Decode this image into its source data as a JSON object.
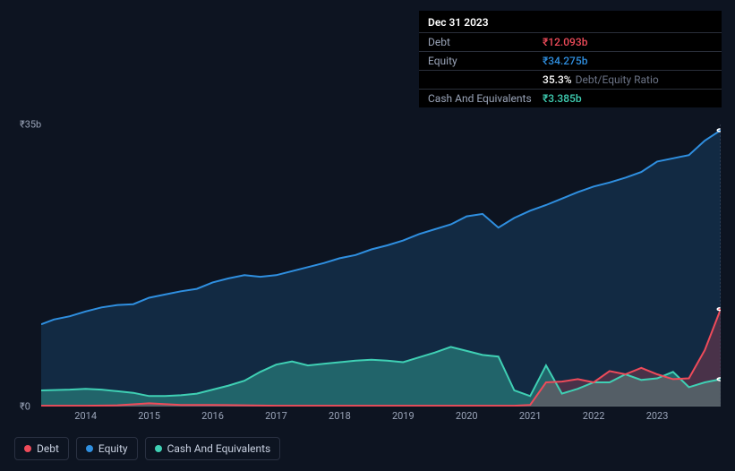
{
  "tooltip": {
    "date": "Dec 31 2023",
    "rows": [
      {
        "label": "Debt",
        "value": "₹12.093b",
        "color": "#ef4b5a"
      },
      {
        "label": "Equity",
        "value": "₹34.275b",
        "color": "#2f8fe0"
      },
      {
        "label": "",
        "value": "35.3%",
        "suffix": "Debt/Equity Ratio",
        "color": "#ffffff"
      },
      {
        "label": "Cash And Equivalents",
        "value": "₹3.385b",
        "color": "#3fd0b4"
      }
    ]
  },
  "chart": {
    "type": "line-area",
    "background_color": "#0d1421",
    "ylim": [
      0,
      35
    ],
    "y_axis": {
      "ticks": [
        {
          "v": 35,
          "label": "₹35b"
        },
        {
          "v": 0,
          "label": "₹0"
        }
      ],
      "label_color": "#9aa4b8",
      "fontsize": 11
    },
    "x_axis": {
      "domain": [
        2013.3,
        2024.0
      ],
      "ticks": [
        2014,
        2015,
        2016,
        2017,
        2018,
        2019,
        2020,
        2021,
        2022,
        2023
      ],
      "label_color": "#9aa4b8",
      "fontsize": 11
    },
    "vline_at": 2024.0,
    "series": [
      {
        "key": "equity",
        "name": "Equity",
        "color": "#2f8fe0",
        "fill_opacity": 0.18,
        "line_width": 2,
        "end_marker": true,
        "data": [
          [
            2013.3,
            10.2
          ],
          [
            2013.5,
            10.8
          ],
          [
            2013.75,
            11.2
          ],
          [
            2014.0,
            11.8
          ],
          [
            2014.25,
            12.3
          ],
          [
            2014.5,
            12.6
          ],
          [
            2014.75,
            12.7
          ],
          [
            2015.0,
            13.5
          ],
          [
            2015.25,
            13.9
          ],
          [
            2015.5,
            14.3
          ],
          [
            2015.75,
            14.6
          ],
          [
            2016.0,
            15.4
          ],
          [
            2016.25,
            15.9
          ],
          [
            2016.5,
            16.3
          ],
          [
            2016.75,
            16.1
          ],
          [
            2017.0,
            16.3
          ],
          [
            2017.25,
            16.8
          ],
          [
            2017.5,
            17.3
          ],
          [
            2017.75,
            17.8
          ],
          [
            2018.0,
            18.4
          ],
          [
            2018.25,
            18.8
          ],
          [
            2018.5,
            19.5
          ],
          [
            2018.75,
            20.0
          ],
          [
            2019.0,
            20.6
          ],
          [
            2019.25,
            21.4
          ],
          [
            2019.5,
            22.0
          ],
          [
            2019.75,
            22.6
          ],
          [
            2020.0,
            23.6
          ],
          [
            2020.25,
            23.9
          ],
          [
            2020.5,
            22.2
          ],
          [
            2020.75,
            23.4
          ],
          [
            2021.0,
            24.3
          ],
          [
            2021.25,
            25.0
          ],
          [
            2021.5,
            25.8
          ],
          [
            2021.75,
            26.6
          ],
          [
            2022.0,
            27.3
          ],
          [
            2022.25,
            27.8
          ],
          [
            2022.5,
            28.4
          ],
          [
            2022.75,
            29.1
          ],
          [
            2023.0,
            30.4
          ],
          [
            2023.25,
            30.8
          ],
          [
            2023.5,
            31.2
          ],
          [
            2023.75,
            33.0
          ],
          [
            2024.0,
            34.28
          ]
        ]
      },
      {
        "key": "cash",
        "name": "Cash And Equivalents",
        "color": "#3fd0b4",
        "fill_opacity": 0.35,
        "line_width": 2,
        "end_marker": true,
        "data": [
          [
            2013.3,
            2.0
          ],
          [
            2013.75,
            2.1
          ],
          [
            2014.0,
            2.2
          ],
          [
            2014.25,
            2.1
          ],
          [
            2014.5,
            1.9
          ],
          [
            2014.75,
            1.7
          ],
          [
            2015.0,
            1.3
          ],
          [
            2015.25,
            1.3
          ],
          [
            2015.5,
            1.4
          ],
          [
            2015.75,
            1.6
          ],
          [
            2016.0,
            2.1
          ],
          [
            2016.25,
            2.6
          ],
          [
            2016.5,
            3.2
          ],
          [
            2016.75,
            4.3
          ],
          [
            2017.0,
            5.2
          ],
          [
            2017.25,
            5.6
          ],
          [
            2017.5,
            5.1
          ],
          [
            2017.75,
            5.3
          ],
          [
            2018.0,
            5.5
          ],
          [
            2018.25,
            5.7
          ],
          [
            2018.5,
            5.8
          ],
          [
            2018.75,
            5.7
          ],
          [
            2019.0,
            5.5
          ],
          [
            2019.25,
            6.1
          ],
          [
            2019.5,
            6.7
          ],
          [
            2019.75,
            7.4
          ],
          [
            2020.0,
            6.9
          ],
          [
            2020.25,
            6.4
          ],
          [
            2020.5,
            6.2
          ],
          [
            2020.75,
            2.0
          ],
          [
            2021.0,
            1.3
          ],
          [
            2021.25,
            5.1
          ],
          [
            2021.5,
            1.6
          ],
          [
            2021.75,
            2.2
          ],
          [
            2022.0,
            3.0
          ],
          [
            2022.25,
            3.0
          ],
          [
            2022.5,
            4.0
          ],
          [
            2022.75,
            3.3
          ],
          [
            2023.0,
            3.5
          ],
          [
            2023.25,
            4.3
          ],
          [
            2023.5,
            2.4
          ],
          [
            2023.75,
            3.0
          ],
          [
            2024.0,
            3.39
          ]
        ]
      },
      {
        "key": "debt",
        "name": "Debt",
        "color": "#ef4b5a",
        "fill_opacity": 0.25,
        "line_width": 2,
        "end_marker": true,
        "data": [
          [
            2013.3,
            0.1
          ],
          [
            2014.0,
            0.1
          ],
          [
            2014.5,
            0.15
          ],
          [
            2015.0,
            0.4
          ],
          [
            2015.5,
            0.2
          ],
          [
            2016.0,
            0.2
          ],
          [
            2016.5,
            0.15
          ],
          [
            2017.0,
            0.1
          ],
          [
            2017.5,
            0.1
          ],
          [
            2018.0,
            0.1
          ],
          [
            2018.5,
            0.1
          ],
          [
            2019.0,
            0.1
          ],
          [
            2019.5,
            0.1
          ],
          [
            2020.0,
            0.1
          ],
          [
            2020.5,
            0.1
          ],
          [
            2020.75,
            0.1
          ],
          [
            2021.0,
            0.2
          ],
          [
            2021.25,
            3.0
          ],
          [
            2021.5,
            3.1
          ],
          [
            2021.75,
            3.4
          ],
          [
            2022.0,
            3.0
          ],
          [
            2022.25,
            4.4
          ],
          [
            2022.5,
            4.0
          ],
          [
            2022.75,
            4.8
          ],
          [
            2023.0,
            4.0
          ],
          [
            2023.25,
            3.4
          ],
          [
            2023.5,
            3.5
          ],
          [
            2023.75,
            7.0
          ],
          [
            2024.0,
            12.09
          ]
        ]
      }
    ]
  },
  "legend": {
    "items": [
      {
        "key": "debt",
        "label": "Debt",
        "color": "#ef4b5a"
      },
      {
        "key": "equity",
        "label": "Equity",
        "color": "#2f8fe0"
      },
      {
        "key": "cash",
        "label": "Cash And Equivalents",
        "color": "#3fd0b4"
      }
    ],
    "border_color": "#2a3142",
    "fontsize": 12
  }
}
